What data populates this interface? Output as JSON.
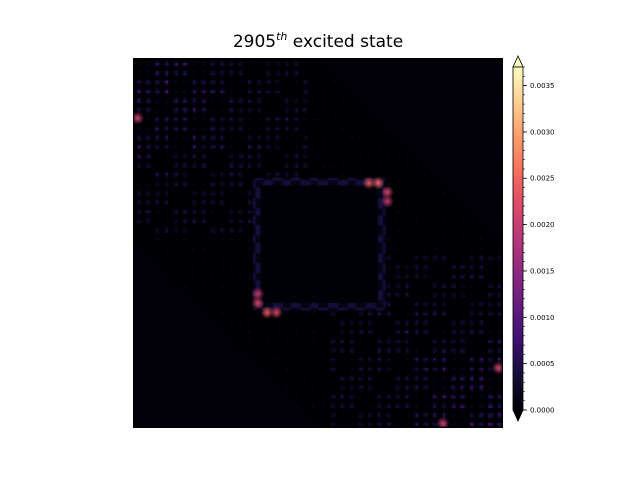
{
  "chart_data": {
    "type": "heatmap",
    "title_base": "2905",
    "title_sup": "th",
    "title_rest": " excited state",
    "colormap": "magma",
    "colorbar": {
      "min": 0.0,
      "max": 0.0037,
      "extend": "both",
      "tick_labels": [
        "0.0000",
        "0.0005",
        "0.0010",
        "0.0015",
        "0.0020",
        "0.0025",
        "0.0030",
        "0.0035"
      ],
      "tick_values": [
        0.0,
        0.0005,
        0.001,
        0.0015,
        0.002,
        0.0025,
        0.003,
        0.0035
      ]
    },
    "grid": false,
    "description_structure": {
      "matrix_size": 40,
      "hot_spots": [
        {
          "row": 13,
          "col": 25,
          "value": 0.0024
        },
        {
          "row": 13,
          "col": 26,
          "value": 0.0025
        },
        {
          "row": 14,
          "col": 27,
          "value": 0.0022
        },
        {
          "row": 15,
          "col": 27,
          "value": 0.002
        },
        {
          "row": 25,
          "col": 13,
          "value": 0.002
        },
        {
          "row": 26,
          "col": 13,
          "value": 0.0022
        },
        {
          "row": 27,
          "col": 14,
          "value": 0.0024
        },
        {
          "row": 27,
          "col": 15,
          "value": 0.0022
        },
        {
          "row": 6,
          "col": 0,
          "value": 0.0021
        },
        {
          "row": 33,
          "col": 39,
          "value": 0.0021
        },
        {
          "row": 39,
          "col": 33,
          "value": 0.002
        }
      ]
    }
  }
}
